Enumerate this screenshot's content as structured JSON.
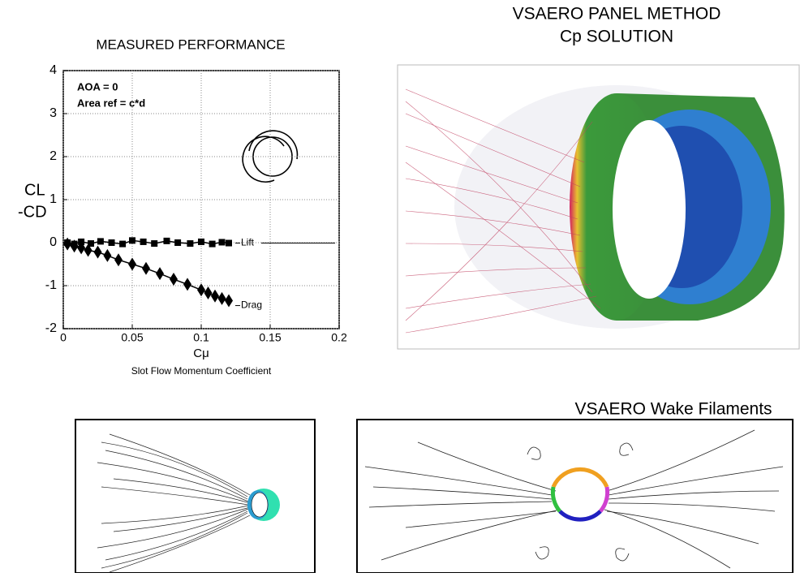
{
  "chart_data": {
    "type": "line",
    "title": "MEASURED PERFORMANCE",
    "xlabel": "Cμ",
    "xlabel_sub": "Slot Flow Momentum Coefficient",
    "ylabel": [
      "CL",
      "-CD"
    ],
    "annotations": [
      "AOA = 0",
      "Area ref = c*d"
    ],
    "xlim": [
      0,
      0.2
    ],
    "xticks": [
      0,
      0.05,
      0.1,
      0.15,
      0.2
    ],
    "ylim": [
      -2,
      4
    ],
    "yticks": [
      -2,
      -1,
      0,
      1,
      2,
      3,
      4
    ],
    "grid": true,
    "series": [
      {
        "name": "Lift",
        "color": "#000000",
        "marker": "square",
        "x": [
          0.003,
          0.008,
          0.013,
          0.02,
          0.027,
          0.035,
          0.043,
          0.05,
          0.058,
          0.066,
          0.075,
          0.083,
          0.092,
          0.1,
          0.108,
          0.115,
          0.12
        ],
        "values": [
          0,
          -0.03,
          0.02,
          -0.02,
          0.03,
          0,
          -0.03,
          0.05,
          0.02,
          -0.02,
          0.04,
          0,
          -0.02,
          0.02,
          -0.03,
          0.01,
          -0.01
        ]
      },
      {
        "name": "Drag",
        "color": "#000000",
        "marker": "diamond",
        "x": [
          0.003,
          0.008,
          0.013,
          0.018,
          0.025,
          0.032,
          0.04,
          0.05,
          0.06,
          0.07,
          0.08,
          0.09,
          0.1,
          0.105,
          0.11,
          0.115,
          0.12
        ],
        "values": [
          -0.03,
          -0.08,
          -0.12,
          -0.18,
          -0.22,
          -0.3,
          -0.4,
          -0.5,
          -0.6,
          -0.72,
          -0.85,
          -0.97,
          -1.1,
          -1.17,
          -1.24,
          -1.3,
          -1.35
        ]
      }
    ]
  },
  "panels": {
    "cp_solution_title": [
      "VSAERO PANEL METHOD",
      "Cp SOLUTION"
    ],
    "wake_title": "VSAERO Wake Filaments"
  }
}
